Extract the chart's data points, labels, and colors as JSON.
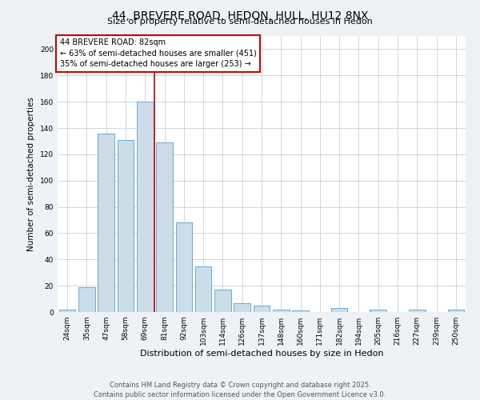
{
  "title": "44, BREVERE ROAD, HEDON, HULL, HU12 8NX",
  "subtitle": "Size of property relative to semi-detached houses in Hedon",
  "xlabel": "Distribution of semi-detached houses by size in Hedon",
  "ylabel": "Number of semi-detached properties",
  "categories": [
    "24sqm",
    "35sqm",
    "47sqm",
    "58sqm",
    "69sqm",
    "81sqm",
    "92sqm",
    "103sqm",
    "114sqm",
    "126sqm",
    "137sqm",
    "148sqm",
    "160sqm",
    "171sqm",
    "182sqm",
    "194sqm",
    "205sqm",
    "216sqm",
    "227sqm",
    "239sqm",
    "250sqm"
  ],
  "values": [
    2,
    19,
    136,
    131,
    160,
    129,
    68,
    35,
    17,
    7,
    5,
    2,
    1,
    0,
    3,
    0,
    2,
    0,
    2,
    0,
    2
  ],
  "bar_color": "#ccdce8",
  "bar_edge_color": "#6aaad4",
  "property_bin_index": 5,
  "annotation_title": "44 BREVERE ROAD: 82sqm",
  "annotation_line1": "← 63% of semi-detached houses are smaller (451)",
  "annotation_line2": "35% of semi-detached houses are larger (253) →",
  "red_line_color": "#cc0000",
  "annotation_box_color": "#ffffff",
  "annotation_box_edge": "#cc0000",
  "footer_line1": "Contains HM Land Registry data © Crown copyright and database right 2025.",
  "footer_line2": "Contains public sector information licensed under the Open Government Licence v3.0.",
  "ylim": [
    0,
    210
  ],
  "yticks": [
    0,
    20,
    40,
    60,
    80,
    100,
    120,
    140,
    160,
    180,
    200
  ],
  "background_color": "#eef2f7",
  "plot_background": "#ffffff",
  "grid_color": "#c8d0d8",
  "title_fontsize": 10,
  "subtitle_fontsize": 8,
  "tick_fontsize": 6.5,
  "ylabel_fontsize": 7.5,
  "xlabel_fontsize": 8,
  "annotation_fontsize": 7,
  "footer_fontsize": 6
}
